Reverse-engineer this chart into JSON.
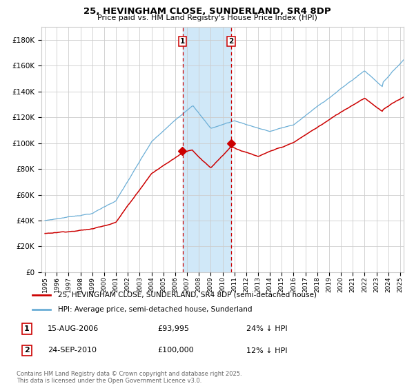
{
  "title": "25, HEVINGHAM CLOSE, SUNDERLAND, SR4 8DP",
  "subtitle": "Price paid vs. HM Land Registry's House Price Index (HPI)",
  "legend_line1": "25, HEVINGHAM CLOSE, SUNDERLAND, SR4 8DP (semi-detached house)",
  "legend_line2": "HPI: Average price, semi-detached house, Sunderland",
  "transaction1_label": "1",
  "transaction1_date": "15-AUG-2006",
  "transaction1_price": "£93,995",
  "transaction1_pct": "24% ↓ HPI",
  "transaction2_label": "2",
  "transaction2_date": "24-SEP-2010",
  "transaction2_price": "£100,000",
  "transaction2_pct": "12% ↓ HPI",
  "footer": "Contains HM Land Registry data © Crown copyright and database right 2025.\nThis data is licensed under the Open Government Licence v3.0.",
  "hpi_color": "#6baed6",
  "price_color": "#cc0000",
  "vline_color": "#cc0000",
  "shade_color": "#d0e8f8",
  "grid_color": "#cccccc",
  "background_color": "#ffffff",
  "ylim": [
    0,
    190000
  ],
  "yticks": [
    0,
    20000,
    40000,
    60000,
    80000,
    100000,
    120000,
    140000,
    160000,
    180000
  ],
  "start_year": 1995,
  "end_year": 2025,
  "transaction1_x": 2006.62,
  "transaction2_x": 2010.73
}
